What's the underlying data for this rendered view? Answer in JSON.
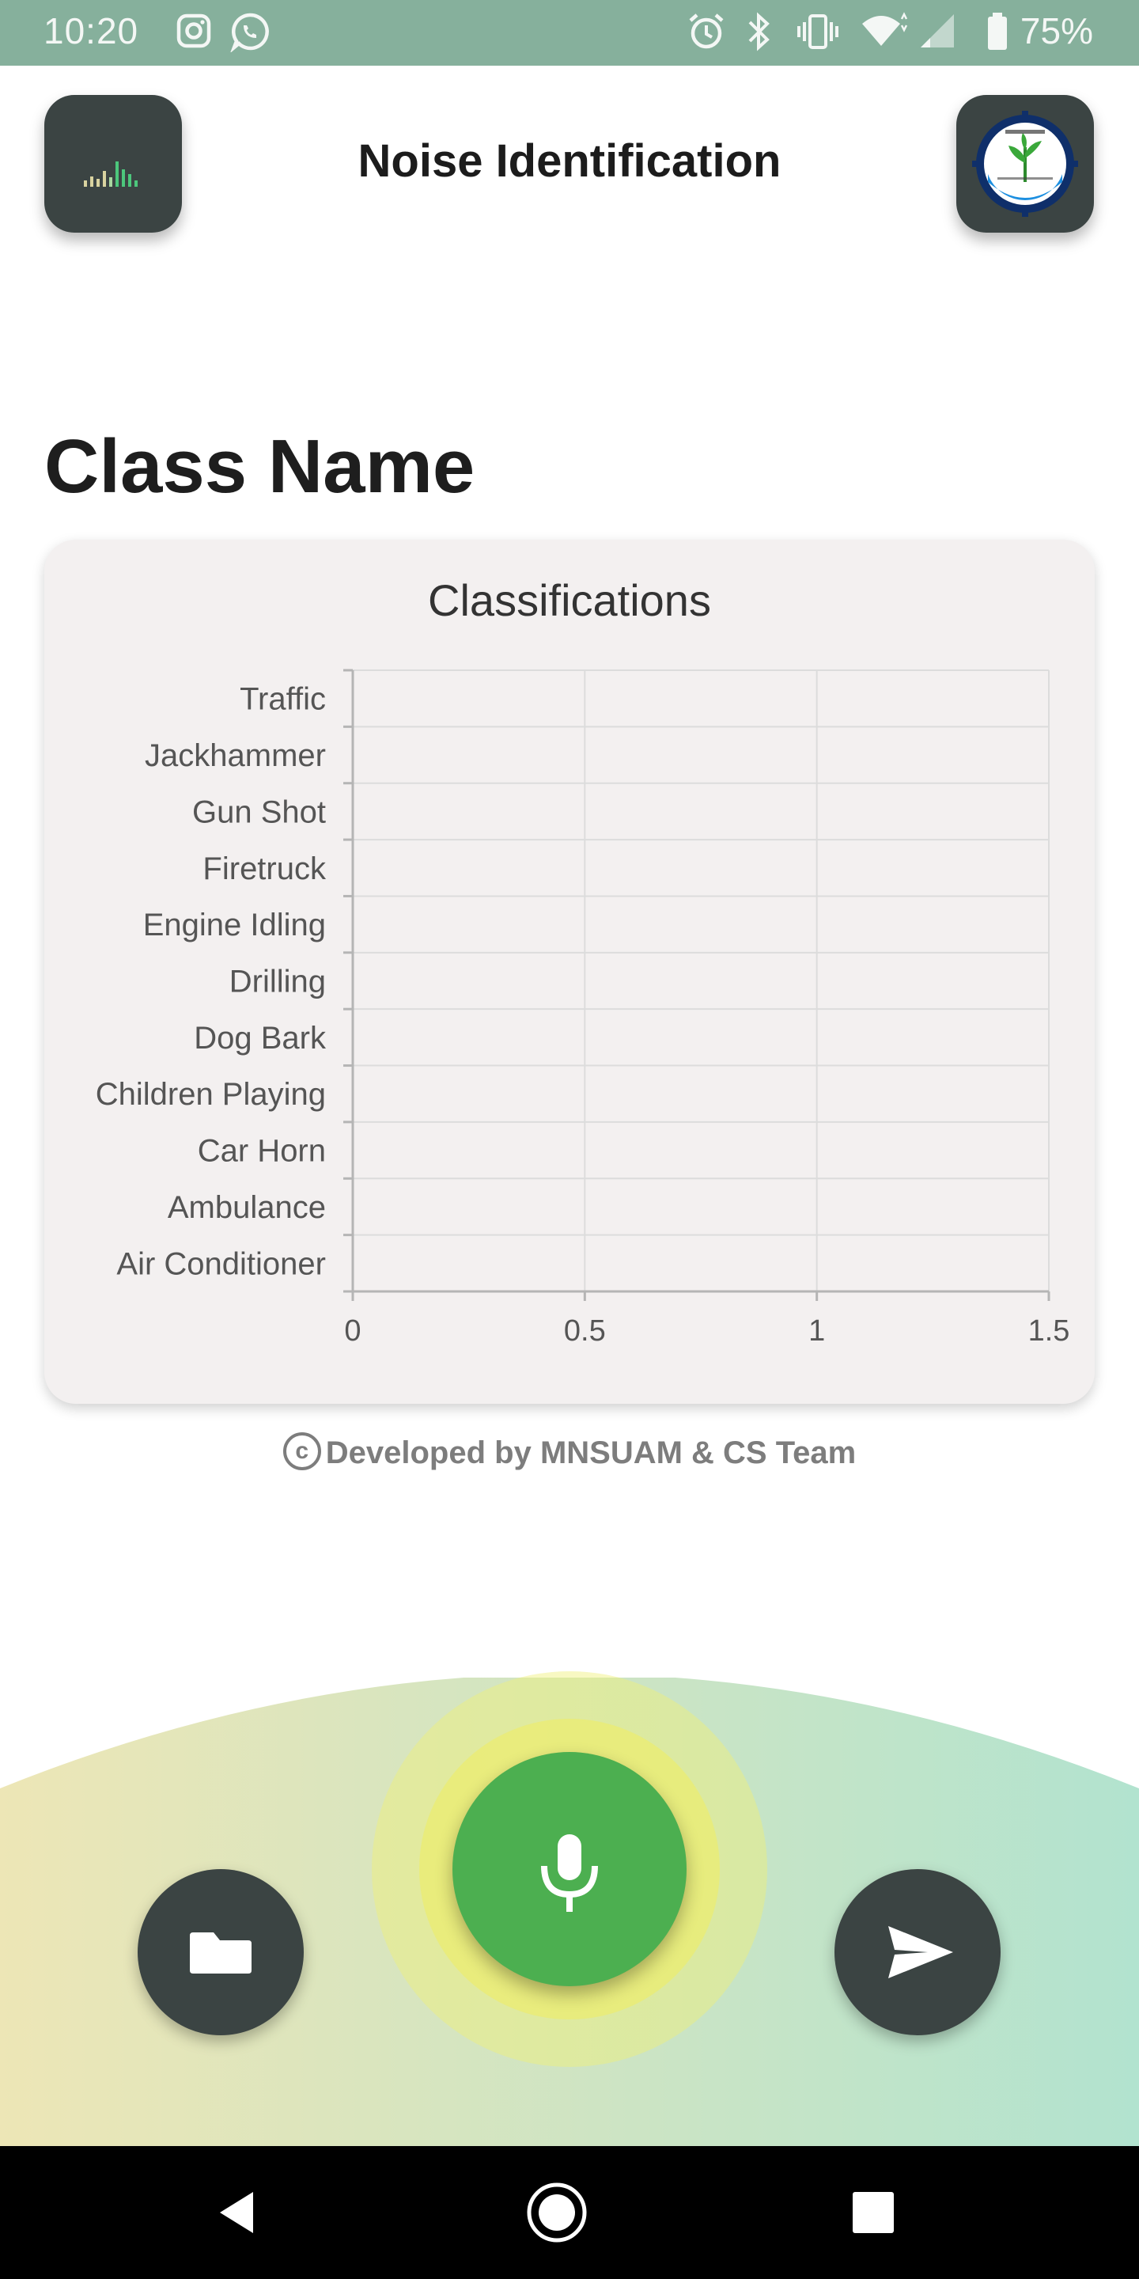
{
  "status_bar": {
    "time": "10:20",
    "battery": "75%",
    "icons": [
      "instagram-icon",
      "whatsapp-icon",
      "alarm-icon",
      "bluetooth-icon",
      "vibrate-icon",
      "wifi-icon",
      "signal-icon",
      "battery-icon"
    ]
  },
  "header": {
    "title": "Noise Identification",
    "left_icon": "equalizer-icon",
    "right_icon": "university-logo"
  },
  "section_title": "Class Name",
  "chart_data": {
    "type": "bar",
    "orientation": "horizontal",
    "title": "Classifications",
    "categories": [
      "Traffic",
      "Jackhammer",
      "Gun Shot",
      "Firetruck",
      "Engine Idling",
      "Drilling",
      "Dog Bark",
      "Children Playing",
      "Car Horn",
      "Ambulance",
      "Air Conditioner"
    ],
    "values": [
      0,
      0,
      0,
      0,
      0,
      0,
      0,
      0,
      0,
      0,
      0
    ],
    "xticks": [
      "0",
      "0.5",
      "1",
      "1.5"
    ],
    "xlim": [
      0,
      1.5
    ],
    "grid": true,
    "bar_color": "#4caf50"
  },
  "credit": {
    "symbol": "c",
    "text": "Developed by MNSUAM & CS Team"
  },
  "actions": {
    "folder": "folder-icon",
    "mic": "microphone-icon",
    "send": "send-icon"
  },
  "colors": {
    "status_bar": "#86b09c",
    "dark_button": "#3b4443",
    "mic_green": "#4caf50",
    "gradient_left": "#ede6b6",
    "gradient_right": "#b2e3cf"
  }
}
